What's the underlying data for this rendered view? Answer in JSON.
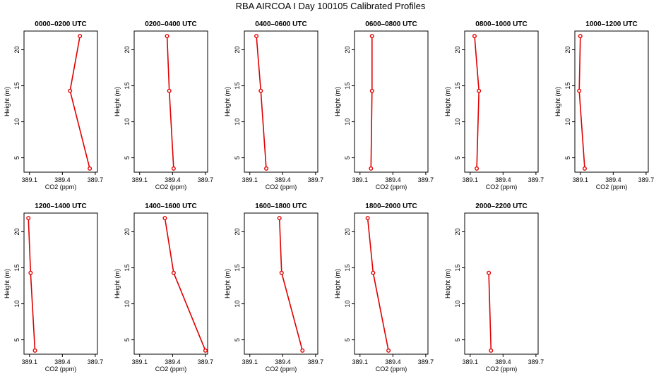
{
  "figure": {
    "title": "RBA AIRCOA I  Day 100105  Calibrated Profiles",
    "line_color": "#e00000"
  },
  "chart_data": [
    {
      "type": "line",
      "title": "0000–0200 UTC",
      "xlabel": "CO2 (ppm)",
      "ylabel": "Height (m)",
      "x_ticks": [
        "389.1",
        "389.4",
        "389.7"
      ],
      "y_ticks": [
        "5",
        "10",
        "15",
        "20"
      ],
      "xlim": [
        389.05,
        389.72
      ],
      "ylim": [
        3,
        22.6
      ],
      "series": [
        {
          "x": [
            389.65,
            389.47,
            389.56
          ],
          "y": [
            3.5,
            14.3,
            21.9
          ]
        }
      ]
    },
    {
      "type": "line",
      "title": "0200–0400 UTC",
      "xlabel": "CO2 (ppm)",
      "ylabel": "Height (m)",
      "x_ticks": [
        "389.1",
        "389.4",
        "389.7"
      ],
      "y_ticks": [
        "5",
        "10",
        "15",
        "20"
      ],
      "xlim": [
        389.05,
        389.72
      ],
      "ylim": [
        3,
        22.6
      ],
      "series": [
        {
          "x": [
            389.41,
            389.37,
            389.35
          ],
          "y": [
            3.5,
            14.3,
            21.9
          ]
        }
      ]
    },
    {
      "type": "line",
      "title": "0400–0600 UTC",
      "xlabel": "CO2 (ppm)",
      "ylabel": "Height (m)",
      "x_ticks": [
        "389.1",
        "389.4",
        "389.7"
      ],
      "y_ticks": [
        "5",
        "10",
        "15",
        "20"
      ],
      "xlim": [
        389.05,
        389.72
      ],
      "ylim": [
        3,
        22.6
      ],
      "series": [
        {
          "x": [
            389.25,
            389.2,
            389.16
          ],
          "y": [
            3.5,
            14.3,
            21.9
          ]
        }
      ]
    },
    {
      "type": "line",
      "title": "0600–0800 UTC",
      "xlabel": "CO2 (ppm)",
      "ylabel": "Height (m)",
      "x_ticks": [
        "389.1",
        "389.4",
        "389.7"
      ],
      "y_ticks": [
        "5",
        "10",
        "15",
        "20"
      ],
      "xlim": [
        389.05,
        389.72
      ],
      "ylim": [
        3,
        22.6
      ],
      "series": [
        {
          "x": [
            389.2,
            389.21,
            389.21
          ],
          "y": [
            3.5,
            14.3,
            21.9
          ]
        }
      ]
    },
    {
      "type": "line",
      "title": "0800–1000 UTC",
      "xlabel": "CO2 (ppm)",
      "ylabel": "Height (m)",
      "x_ticks": [
        "389.1",
        "389.4",
        "389.7"
      ],
      "y_ticks": [
        "5",
        "10",
        "15",
        "20"
      ],
      "xlim": [
        389.05,
        389.72
      ],
      "ylim": [
        3,
        22.6
      ],
      "series": [
        {
          "x": [
            389.16,
            389.18,
            389.14
          ],
          "y": [
            3.5,
            14.3,
            21.9
          ]
        }
      ]
    },
    {
      "type": "line",
      "title": "1000–1200 UTC",
      "xlabel": "CO2 (ppm)",
      "ylabel": "Height (m)",
      "x_ticks": [
        "389.1",
        "389.4",
        "389.7"
      ],
      "y_ticks": [
        "5",
        "10",
        "15",
        "20"
      ],
      "xlim": [
        389.05,
        389.72
      ],
      "ylim": [
        3,
        22.6
      ],
      "series": [
        {
          "x": [
            389.14,
            389.09,
            389.1
          ],
          "y": [
            3.5,
            14.3,
            21.9
          ]
        }
      ]
    },
    {
      "type": "line",
      "title": "1200–1400 UTC",
      "xlabel": "CO2 (ppm)",
      "ylabel": "Height (m)",
      "x_ticks": [
        "389.1",
        "389.4",
        "389.7"
      ],
      "y_ticks": [
        "5",
        "10",
        "15",
        "20"
      ],
      "xlim": [
        389.05,
        389.72
      ],
      "ylim": [
        3,
        22.6
      ],
      "series": [
        {
          "x": [
            389.15,
            389.11,
            389.09
          ],
          "y": [
            3.5,
            14.3,
            21.9
          ]
        }
      ]
    },
    {
      "type": "line",
      "title": "1400–1600 UTC",
      "xlabel": "CO2 (ppm)",
      "ylabel": "Height (m)",
      "x_ticks": [
        "389.1",
        "389.4",
        "389.7"
      ],
      "y_ticks": [
        "5",
        "10",
        "15",
        "20"
      ],
      "xlim": [
        389.05,
        389.72
      ],
      "ylim": [
        3,
        22.6
      ],
      "series": [
        {
          "x": [
            389.7,
            389.41,
            389.33
          ],
          "y": [
            3.5,
            14.3,
            21.9
          ]
        }
      ]
    },
    {
      "type": "line",
      "title": "1600–1800 UTC",
      "xlabel": "CO2 (ppm)",
      "ylabel": "Height (m)",
      "x_ticks": [
        "389.1",
        "389.4",
        "389.7"
      ],
      "y_ticks": [
        "5",
        "10",
        "15",
        "20"
      ],
      "xlim": [
        389.05,
        389.72
      ],
      "ylim": [
        3,
        22.6
      ],
      "series": [
        {
          "x": [
            389.58,
            389.39,
            389.37
          ],
          "y": [
            3.5,
            14.3,
            21.9
          ]
        }
      ]
    },
    {
      "type": "line",
      "title": "1800–2000 UTC",
      "xlabel": "CO2 (ppm)",
      "ylabel": "Height (m)",
      "x_ticks": [
        "389.1",
        "389.4",
        "389.7"
      ],
      "y_ticks": [
        "5",
        "10",
        "15",
        "20"
      ],
      "xlim": [
        389.05,
        389.72
      ],
      "ylim": [
        3,
        22.6
      ],
      "series": [
        {
          "x": [
            389.36,
            389.22,
            389.17
          ],
          "y": [
            3.5,
            14.3,
            21.9
          ]
        }
      ]
    },
    {
      "type": "line",
      "title": "2000–2200 UTC",
      "xlabel": "CO2 (ppm)",
      "ylabel": "Height (m)",
      "x_ticks": [
        "389.1",
        "389.4",
        "389.7"
      ],
      "y_ticks": [
        "5",
        "10",
        "15",
        "20"
      ],
      "xlim": [
        389.05,
        389.72
      ],
      "ylim": [
        3,
        22.6
      ],
      "series": [
        {
          "x": [
            389.29,
            389.27
          ],
          "y": [
            3.5,
            14.3
          ]
        }
      ]
    }
  ]
}
